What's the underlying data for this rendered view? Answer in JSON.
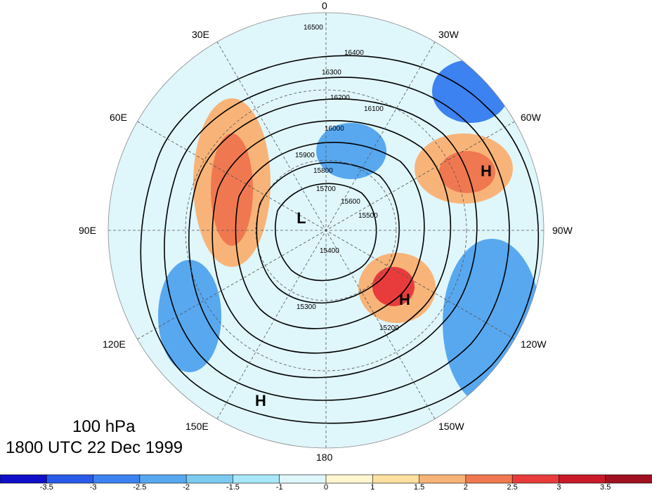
{
  "title": {
    "level": "100 hPa",
    "time": "1800 UTC 22 Dec 1999"
  },
  "longitude_labels": {
    "lon_0": "0",
    "lon_30w": "30W",
    "lon_60w": "60W",
    "lon_90w": "90W",
    "lon_120w": "120W",
    "lon_150w": "150W",
    "lon_180": "180",
    "lon_150e": "150E",
    "lon_120e": "120E",
    "lon_90e": "90E",
    "lon_60e": "60E",
    "lon_30e": "30E"
  },
  "pressure_centers": [
    "L",
    "H",
    "H",
    "H"
  ],
  "contour_labels": [
    "16500",
    "16400",
    "16300",
    "16200",
    "16100",
    "16000",
    "15900",
    "15800",
    "15700",
    "15600",
    "15500",
    "15400",
    "15300",
    "15200"
  ],
  "colorbar": {
    "ticks": [
      "-3.5",
      "-3",
      "-2.5",
      "-2",
      "-1.5",
      "-1",
      "0",
      "1",
      "1.5",
      "2",
      "2.5",
      "3",
      "3.5"
    ],
    "colors": [
      "#1010c8",
      "#2a5ae8",
      "#3c82f0",
      "#58a8f0",
      "#7ccaf0",
      "#a8e8f8",
      "#dff6fb",
      "#fff6d0",
      "#fce0a0",
      "#f8b478",
      "#f07850",
      "#e83c3c",
      "#c81a28",
      "#a01020"
    ]
  }
}
